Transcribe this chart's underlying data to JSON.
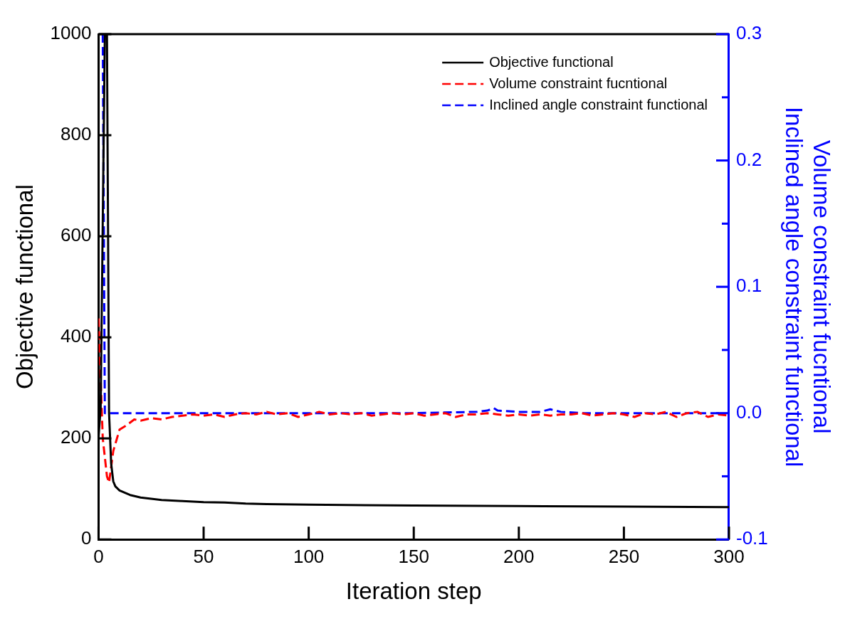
{
  "chart_data": {
    "type": "line",
    "xlabel": "Iteration step",
    "ylabel": "Objective functional",
    "y2label": "Volume constraint fucntional\nInclined angle constraint functional",
    "xlim": [
      0,
      300
    ],
    "xticks": [
      0,
      50,
      100,
      150,
      200,
      250,
      300
    ],
    "ylim": [
      0,
      1000
    ],
    "yticks": [
      0,
      200,
      400,
      600,
      800,
      1000
    ],
    "y2lim": [
      -0.1,
      0.3
    ],
    "y2ticks": [
      -0.1,
      {
        "value": -0.05,
        "label": null
      },
      {
        "value": 0,
        "label": "0.0"
      },
      {
        "value": 0.05,
        "label": null
      },
      0.1,
      {
        "value": 0.15,
        "label": null
      },
      0.2,
      {
        "value": 0.25,
        "label": null
      },
      0.3
    ],
    "legend": "top right",
    "grid": false,
    "series": [
      {
        "name": "Objective functional",
        "color": "#000000",
        "line_style": "solid",
        "x": [
          0,
          1,
          3,
          4,
          5,
          6,
          7,
          8,
          10,
          15,
          20,
          30,
          40,
          50,
          60,
          70,
          80,
          100,
          150,
          200,
          250,
          300
        ],
        "values": [
          203,
          260,
          1000,
          1000,
          250,
          150,
          115,
          105,
          97,
          88,
          83,
          78,
          76,
          74,
          73,
          71,
          70,
          69,
          67,
          66,
          65,
          64
        ]
      },
      {
        "name": "Volume constraint fucntional",
        "color": "#ff0000",
        "line_style": "dashed",
        "axis": "y2",
        "x": [
          0,
          2,
          4,
          5,
          7,
          10,
          13,
          17,
          20,
          25,
          30,
          35,
          40,
          45,
          50,
          55,
          60,
          65,
          70,
          75,
          80,
          85,
          90,
          95,
          100,
          105,
          110,
          115,
          120,
          125,
          130,
          135,
          140,
          145,
          150,
          155,
          160,
          165,
          170,
          175,
          180,
          185,
          190,
          195,
          200,
          205,
          210,
          215,
          220,
          225,
          230,
          235,
          240,
          245,
          250,
          255,
          260,
          265,
          270,
          275,
          280,
          285,
          290,
          295,
          300
        ],
        "values": [
          0.075,
          -0.02,
          -0.05,
          -0.055,
          -0.03,
          -0.013,
          -0.01,
          -0.005,
          -0.006,
          -0.004,
          -0.005,
          -0.003,
          -0.002,
          -0.001,
          -0.002,
          -0.001,
          -0.003,
          -0.001,
          0.0,
          -0.001,
          0.001,
          -0.001,
          0.0,
          -0.003,
          -0.001,
          0.001,
          -0.001,
          0.0,
          -0.001,
          0.0,
          -0.002,
          -0.001,
          0.0,
          -0.001,
          0.0,
          -0.002,
          -0.001,
          0.0,
          -0.003,
          -0.001,
          -0.001,
          0.0,
          -0.001,
          -0.002,
          -0.001,
          -0.002,
          -0.001,
          -0.002,
          -0.001,
          -0.001,
          0.0,
          -0.002,
          -0.001,
          0.0,
          -0.001,
          -0.003,
          0.0,
          -0.001,
          0.001,
          -0.003,
          0.0,
          0.001,
          -0.003,
          -0.001,
          -0.002
        ]
      },
      {
        "name": "Inclined angle constraint functional",
        "color": "#0000ff",
        "line_style": "dashed",
        "axis": "y2",
        "x": [
          2,
          3,
          4,
          50,
          100,
          150,
          180,
          185,
          188,
          190,
          200,
          210,
          215,
          220,
          230,
          296
        ],
        "values": [
          0.3,
          0.0,
          0.0,
          0.0,
          0.0,
          0.0,
          0.001,
          0.002,
          0.004,
          0.002,
          0.001,
          0.001,
          0.003,
          0.001,
          0.0,
          0.0
        ]
      }
    ]
  }
}
